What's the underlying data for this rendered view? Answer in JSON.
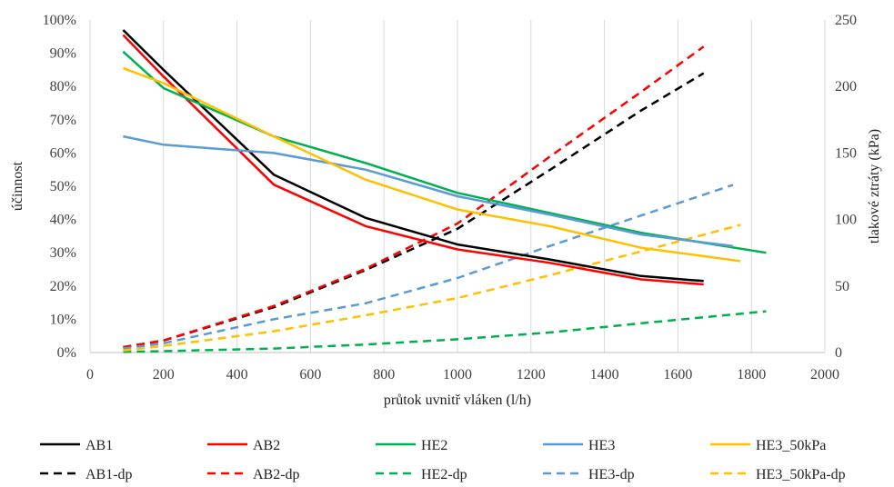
{
  "chart_data": {
    "type": "line",
    "xlabel": "průtok uvnitř vláken (l/h)",
    "ylabel_left": "účinnost",
    "ylabel_right": "tlakové ztráty (kPa)",
    "x_axis": {
      "min": 0,
      "max": 2000,
      "ticks": [
        "0",
        "200",
        "400",
        "600",
        "800",
        "1000",
        "1200",
        "1400",
        "1600",
        "1800",
        "2000"
      ]
    },
    "y_left_axis": {
      "min": 0,
      "max": 100,
      "unit": "%",
      "ticks": [
        "0%",
        "10%",
        "20%",
        "30%",
        "40%",
        "50%",
        "60%",
        "70%",
        "80%",
        "90%",
        "100%"
      ]
    },
    "y_right_axis": {
      "min": 0,
      "max": 250,
      "ticks": [
        "0",
        "50",
        "100",
        "150",
        "200",
        "250"
      ]
    },
    "grid": "vertical",
    "legend_position": "bottom",
    "series": [
      {
        "name": "AB1",
        "axis": "left",
        "style": "solid",
        "color": "#000000",
        "x": [
          90,
          200,
          500,
          750,
          1000,
          1250,
          1500,
          1670
        ],
        "y": [
          97,
          85,
          53.5,
          40.5,
          32.5,
          28,
          23,
          21.5
        ]
      },
      {
        "name": "AB2",
        "axis": "left",
        "style": "solid",
        "color": "#ff0000",
        "x": [
          90,
          200,
          500,
          750,
          1000,
          1250,
          1500,
          1670
        ],
        "y": [
          95.5,
          83,
          50.5,
          38,
          31,
          27,
          22,
          20.5
        ]
      },
      {
        "name": "HE2",
        "axis": "left",
        "style": "solid",
        "color": "#00b050",
        "x": [
          90,
          200,
          500,
          750,
          1000,
          1250,
          1500,
          1840
        ],
        "y": [
          90.5,
          79.5,
          65,
          57,
          48,
          42,
          36,
          30
        ]
      },
      {
        "name": "HE3",
        "axis": "left",
        "style": "solid",
        "color": "#5b9bd5",
        "x": [
          90,
          200,
          500,
          750,
          1000,
          1250,
          1500,
          1750
        ],
        "y": [
          65,
          62.5,
          60,
          55,
          47,
          41.5,
          35.5,
          32
        ]
      },
      {
        "name": "HE3_50kPa",
        "axis": "left",
        "style": "solid",
        "color": "#ffc000",
        "x": [
          90,
          200,
          500,
          750,
          1000,
          1250,
          1500,
          1770
        ],
        "y": [
          85.5,
          81,
          65,
          52,
          43,
          38,
          31.5,
          27.5
        ]
      },
      {
        "name": "AB1-dp",
        "axis": "right",
        "style": "dashed",
        "color": "#000000",
        "x": [
          90,
          200,
          500,
          750,
          1000,
          1250,
          1500,
          1670
        ],
        "y": [
          4,
          9,
          34,
          62,
          93,
          137,
          182,
          210
        ]
      },
      {
        "name": "AB2-dp",
        "axis": "right",
        "style": "dashed",
        "color": "#ff0000",
        "x": [
          90,
          200,
          500,
          750,
          1000,
          1250,
          1500,
          1670
        ],
        "y": [
          4,
          9,
          35,
          63,
          97,
          147,
          196,
          230
        ]
      },
      {
        "name": "HE2-dp",
        "axis": "right",
        "style": "dashed",
        "color": "#00b050",
        "x": [
          90,
          200,
          500,
          750,
          1000,
          1250,
          1500,
          1840
        ],
        "y": [
          0.5,
          1,
          3,
          6,
          10,
          15,
          22,
          31
        ]
      },
      {
        "name": "HE3-dp",
        "axis": "right",
        "style": "dashed",
        "color": "#5b9bd5",
        "x": [
          90,
          200,
          500,
          750,
          1000,
          1250,
          1500,
          1750
        ],
        "y": [
          3,
          7,
          25,
          37,
          56,
          80,
          103,
          126
        ]
      },
      {
        "name": "HE3_50kPa-dp",
        "axis": "right",
        "style": "dashed",
        "color": "#ffc000",
        "x": [
          90,
          200,
          500,
          750,
          1000,
          1250,
          1500,
          1770
        ],
        "y": [
          1.5,
          5,
          16,
          28,
          41,
          58,
          76,
          96
        ]
      }
    ]
  }
}
